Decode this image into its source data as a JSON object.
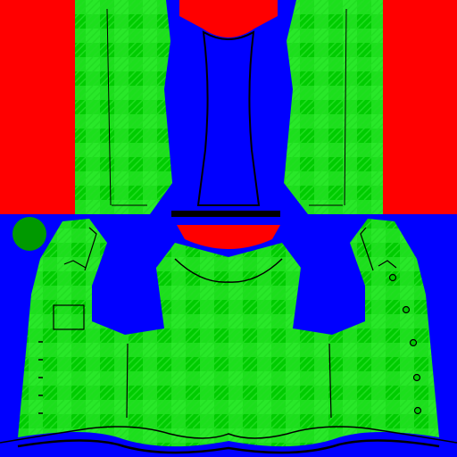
{
  "texture": {
    "colors": {
      "background": "#0000ff",
      "fabric_base": "#00cc00",
      "fabric_check": "#33ee33",
      "fabric_stripe": "#22dd22",
      "panel_red": "#ff0000",
      "outline": "#000000",
      "badge": "#009900"
    },
    "pattern": "green-plaid",
    "parts": [
      "left-sleeve-red-block",
      "right-sleeve-red-block",
      "left-sleeve-panel",
      "right-sleeve-panel",
      "collar-strip",
      "neck-band",
      "back-collar-patch",
      "shirt-body",
      "chest-pocket",
      "placket-buttons",
      "crest-badge"
    ],
    "button_count": 5,
    "hem_stitch_count": 6
  }
}
